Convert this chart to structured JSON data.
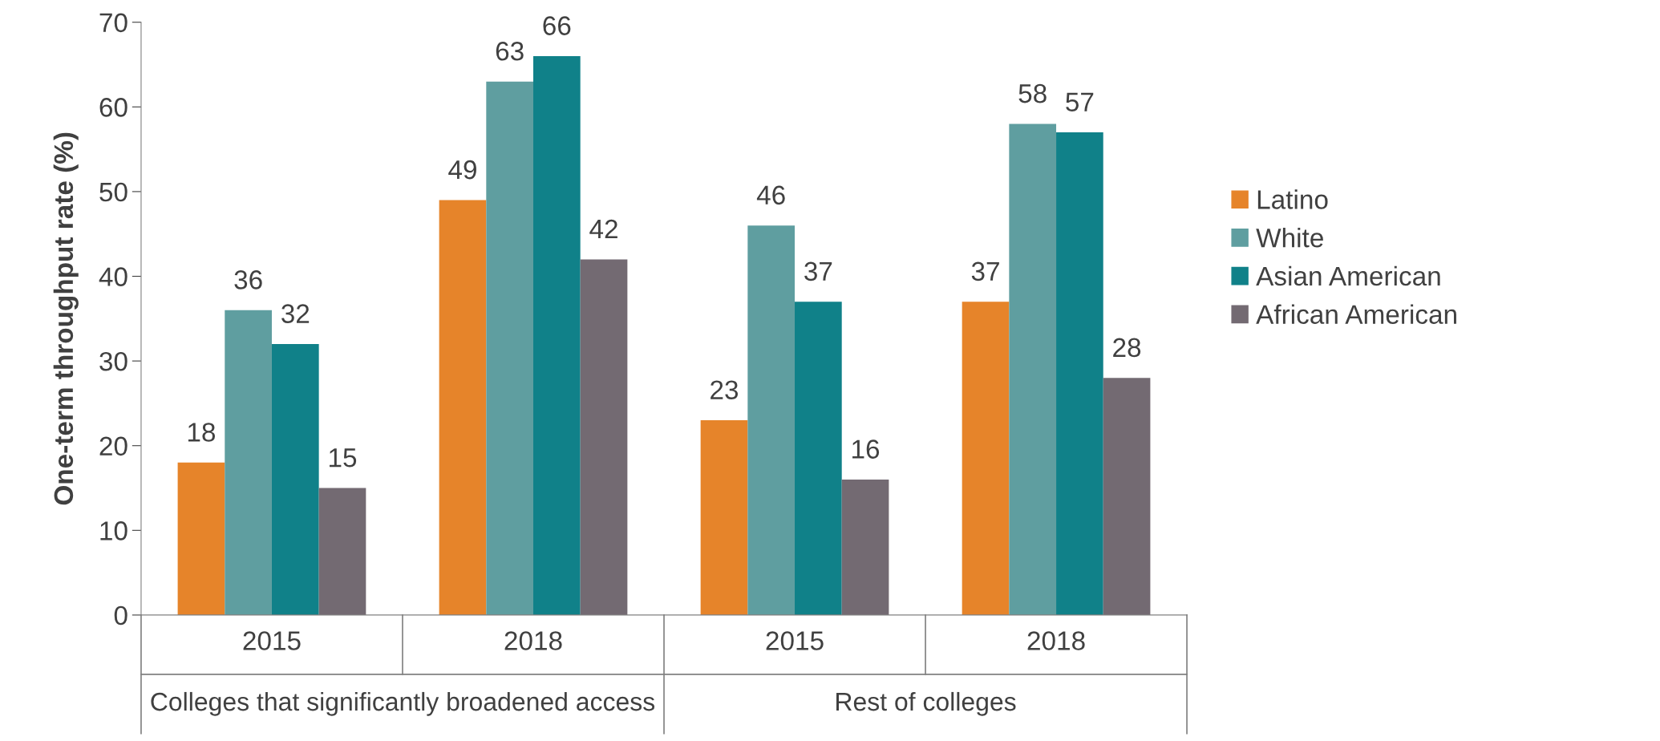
{
  "chart_data": {
    "type": "bar",
    "ylabel": "One-term throughput rate (%)",
    "categories": [
      "2015",
      "2018",
      "2015",
      "2018"
    ],
    "annotations": [
      "Colleges that significantly broadened access",
      "Rest of colleges"
    ],
    "series": [
      {
        "name": "Latino",
        "color": "#e6842a",
        "values": [
          18,
          49,
          23,
          37
        ]
      },
      {
        "name": "White",
        "color": "#5f9ea0",
        "values": [
          36,
          63,
          46,
          58
        ]
      },
      {
        "name": "Asian American",
        "color": "#108189",
        "values": [
          32,
          66,
          37,
          57
        ]
      },
      {
        "name": "African American",
        "color": "#736a72",
        "values": [
          15,
          42,
          16,
          28
        ]
      }
    ],
    "ylim": [
      0,
      70
    ],
    "yticks": [
      0,
      10,
      20,
      30,
      40,
      50,
      60,
      70
    ],
    "data_labels": true,
    "grid": false,
    "legend": "right"
  }
}
